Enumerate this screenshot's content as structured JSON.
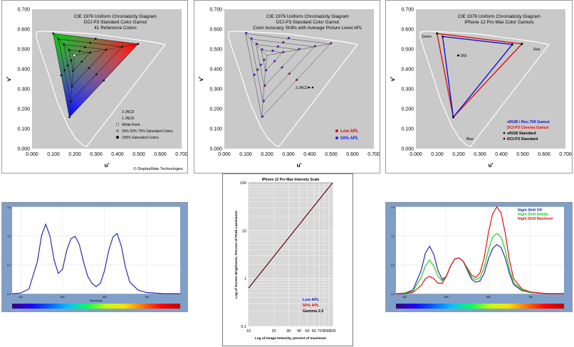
{
  "chart_data": [
    {
      "type": "scatter",
      "title": "CIE 1976 Uniform Chromaticity Diagram",
      "subtitle_lines": [
        "DCI-P3 Standard Color Gamut",
        "41 Reference Colors"
      ],
      "xlabel": "u'",
      "ylabel": "v'",
      "xlim": [
        0,
        0.7
      ],
      "ylim": [
        0,
        0.7
      ],
      "xticks": [
        "0.000",
        "0.100",
        "0.200",
        "0.300",
        "0.400",
        "0.500",
        "0.600",
        "0.700"
      ],
      "yticks": [
        "0.000",
        "0.100",
        "0.200",
        "0.300",
        "0.400",
        "0.500",
        "0.600",
        "0.700"
      ],
      "gamut_vertices": [
        [
          0.099,
          0.578
        ],
        [
          0.496,
          0.526
        ],
        [
          0.175,
          0.158
        ]
      ],
      "white_point": [
        0.198,
        0.468
      ],
      "saturation_levels": [
        0.25,
        0.5,
        0.75,
        1.0
      ],
      "legend": [
        "3 JNCD",
        "1 JNCD",
        "White Point",
        "25% 50% 75% Saturated Colors",
        "100% Saturated Colors"
      ],
      "credit": "© DisplayMate Technologies"
    },
    {
      "type": "scatter",
      "title": "CIE 1976 Uniform Chromaticity Diagram",
      "subtitle_lines": [
        "DCI-P3 Standard Color Gamut",
        "Color Accuracy Shifts with Average Picture Level APL"
      ],
      "xlabel": "u'",
      "ylabel": "v'",
      "xlim": [
        0,
        0.7
      ],
      "ylim": [
        0,
        0.7
      ],
      "xticks": [
        "0.000",
        "0.100",
        "0.200",
        "0.300",
        "0.400",
        "0.500",
        "0.600",
        "0.700"
      ],
      "yticks": [
        "0.000",
        "0.100",
        "0.200",
        "0.300",
        "0.400",
        "0.500",
        "0.600",
        "0.700"
      ],
      "gamut_vertices": [
        [
          0.099,
          0.578
        ],
        [
          0.496,
          0.526
        ],
        [
          0.175,
          0.158
        ]
      ],
      "series": [
        {
          "name": "Low APL",
          "color": "#e00000"
        },
        {
          "name": "50% APL",
          "color": "#2020e0"
        }
      ],
      "jncd_label": "3 JNCD"
    },
    {
      "type": "scatter",
      "title": "CIE 1976 Uniform Chromaticity Diagram",
      "subtitle_lines": [
        "iPhone 12 Pro Max Color Gamuts"
      ],
      "xlabel": "u'",
      "ylabel": "v'",
      "xlim": [
        0,
        0.7
      ],
      "ylim": [
        0,
        0.7
      ],
      "xticks": [
        "0.000",
        "0.100",
        "0.200",
        "0.300",
        "0.400",
        "0.500",
        "0.600",
        "0.700"
      ],
      "yticks": [
        "0.000",
        "0.100",
        "0.200",
        "0.300",
        "0.400",
        "0.500",
        "0.600",
        "0.700"
      ],
      "annotations": [
        "Green",
        "Red",
        "Blue",
        "D65"
      ],
      "d65": [
        0.198,
        0.468
      ],
      "srgb_vertices": [
        [
          0.125,
          0.563
        ],
        [
          0.451,
          0.523
        ],
        [
          0.175,
          0.158
        ]
      ],
      "p3_vertices": [
        [
          0.099,
          0.578
        ],
        [
          0.496,
          0.526
        ],
        [
          0.175,
          0.158
        ]
      ],
      "legend": [
        {
          "name": "sRGB / Rec.709 Gamut",
          "color": "#1010d0"
        },
        {
          "name": "DCI-P3 Cinema Gamut",
          "color": "#e01010"
        },
        {
          "name": "sRGB Standard",
          "color": "#000000"
        },
        {
          "name": "DCI-P3 Standard",
          "color": "#000000"
        }
      ]
    },
    {
      "type": "line",
      "xlabel": "Wavelength",
      "xticks": [
        "400",
        "500",
        "600",
        "700"
      ],
      "yticks": [
        "0.0",
        "0.5",
        "1.0",
        "1.5"
      ],
      "xlim": [
        380,
        780
      ],
      "ylim": [
        0,
        1.5
      ],
      "series": [
        {
          "color": "#2a2ab0",
          "x": [
            380,
            400,
            420,
            440,
            450,
            460,
            470,
            480,
            490,
            500,
            510,
            520,
            530,
            540,
            550,
            560,
            570,
            580,
            590,
            600,
            610,
            620,
            630,
            640,
            650,
            660,
            680,
            700,
            740,
            780
          ],
          "y": [
            0.0,
            0.01,
            0.08,
            0.55,
            1.0,
            1.2,
            1.0,
            0.58,
            0.35,
            0.42,
            0.75,
            0.95,
            0.99,
            0.85,
            0.55,
            0.3,
            0.18,
            0.12,
            0.18,
            0.4,
            0.75,
            0.98,
            1.04,
            0.82,
            0.45,
            0.2,
            0.06,
            0.02,
            0.0,
            0.0
          ]
        }
      ]
    },
    {
      "type": "line",
      "title": "iPhone 12 Pro Max Intensity Scale",
      "xlabel": "Log of Image Intensity, percent of maximum",
      "ylabel": "Log of Screen Brightness, Percent of Peak Luminance",
      "x_scale": "log",
      "y_scale": "log",
      "xlim": [
        10,
        100
      ],
      "ylim": [
        0.1,
        100
      ],
      "xticks": [
        "10",
        "20",
        "30",
        "40",
        "50",
        "60",
        "70",
        "80",
        "90",
        "100"
      ],
      "yticks": [
        "0.1",
        "1",
        "10",
        "100"
      ],
      "series": [
        {
          "name": "Low APL",
          "color": "#1a1acc",
          "x": [
            10,
            100
          ],
          "y": [
            0.63,
            100
          ]
        },
        {
          "name": "50% APL",
          "color": "#e01010",
          "x": [
            10,
            100
          ],
          "y": [
            0.63,
            100
          ]
        },
        {
          "name": "Gamma 2.2",
          "color": "#000000",
          "x": [
            10,
            100
          ],
          "y": [
            0.63,
            100
          ]
        }
      ]
    },
    {
      "type": "line",
      "xticks": [
        "400",
        "500",
        "600",
        "700"
      ],
      "yticks": [
        "0.0",
        "0.5",
        "1.0",
        "1.5"
      ],
      "xlim": [
        380,
        780
      ],
      "ylim": [
        0,
        1.5
      ],
      "x": [
        380,
        400,
        420,
        440,
        450,
        460,
        470,
        480,
        490,
        500,
        510,
        520,
        530,
        540,
        550,
        560,
        570,
        580,
        590,
        600,
        610,
        620,
        630,
        640,
        650,
        660,
        680,
        700,
        740,
        780
      ],
      "series": [
        {
          "name": "Night Shift Off",
          "color": "#2a2ab0",
          "y": [
            0.0,
            0.01,
            0.06,
            0.4,
            0.7,
            0.82,
            0.68,
            0.4,
            0.25,
            0.3,
            0.48,
            0.6,
            0.62,
            0.56,
            0.4,
            0.25,
            0.2,
            0.22,
            0.35,
            0.6,
            0.78,
            0.85,
            0.8,
            0.62,
            0.35,
            0.16,
            0.05,
            0.02,
            0.0,
            0.0
          ]
        },
        {
          "name": "Night Shift Middle",
          "color": "#20d020",
          "y": [
            0.0,
            0.01,
            0.04,
            0.28,
            0.48,
            0.58,
            0.48,
            0.3,
            0.22,
            0.3,
            0.48,
            0.6,
            0.62,
            0.56,
            0.42,
            0.28,
            0.24,
            0.28,
            0.45,
            0.75,
            0.98,
            1.04,
            0.98,
            0.76,
            0.42,
            0.19,
            0.06,
            0.02,
            0.0,
            0.0
          ]
        },
        {
          "name": "Night Shift Maximum",
          "color": "#e01010",
          "y": [
            0.0,
            0.0,
            0.02,
            0.14,
            0.26,
            0.3,
            0.26,
            0.18,
            0.18,
            0.3,
            0.48,
            0.6,
            0.62,
            0.56,
            0.44,
            0.32,
            0.28,
            0.36,
            0.62,
            1.05,
            1.38,
            1.5,
            1.4,
            1.05,
            0.58,
            0.26,
            0.08,
            0.03,
            0.0,
            0.0
          ]
        }
      ]
    }
  ]
}
